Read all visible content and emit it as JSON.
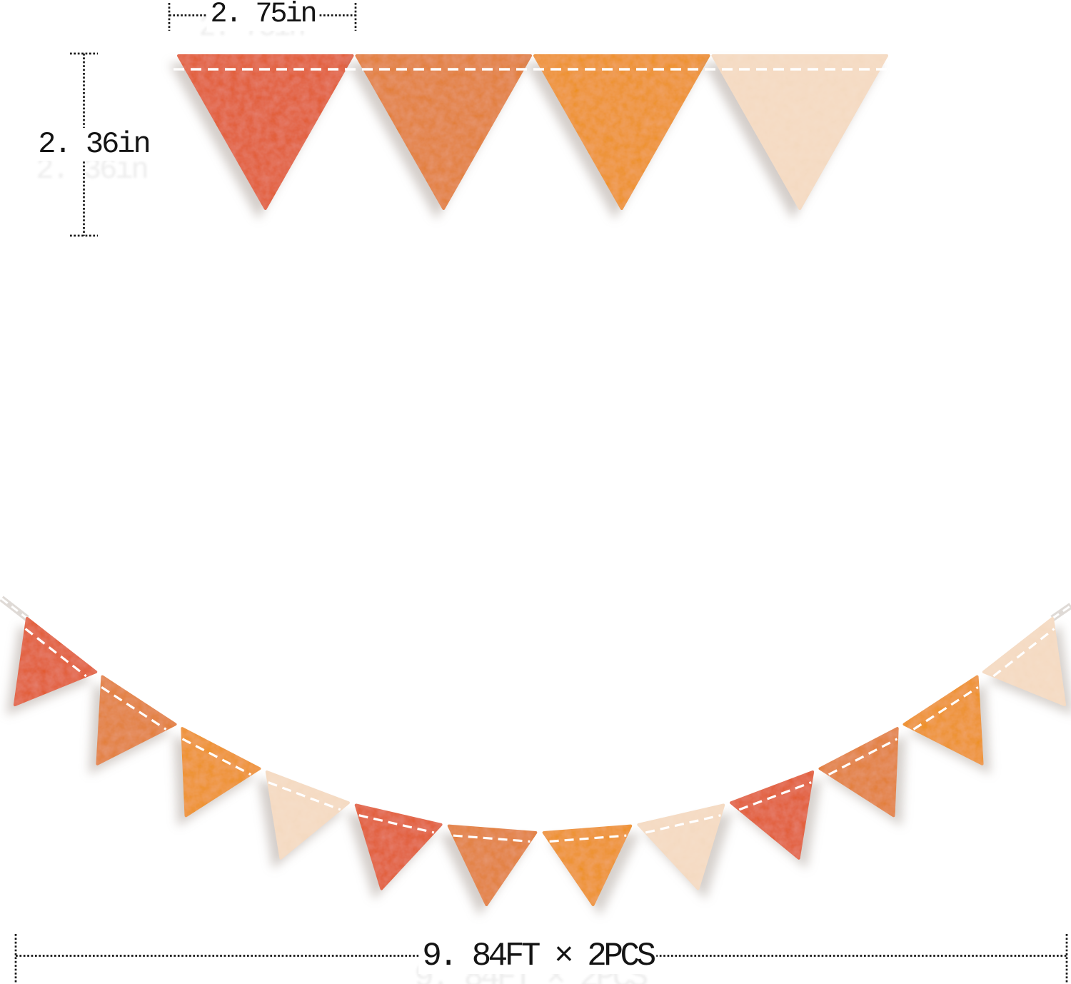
{
  "page": {
    "background": "#ffffff"
  },
  "palette": {
    "red_orange": "#E1562B",
    "orange": "#E27B31",
    "golden_orange": "#EE8E15",
    "peach": "#F4D9C0"
  },
  "stitch_color": "#FFFFFF",
  "dimension_color": "#161616",
  "top_row": {
    "flags": [
      "red_orange",
      "orange",
      "golden_orange",
      "peach"
    ]
  },
  "garland": {
    "flags": [
      "red_orange",
      "orange",
      "golden_orange",
      "peach",
      "red_orange",
      "orange",
      "golden_orange",
      "peach",
      "red_orange",
      "orange",
      "golden_orange",
      "peach"
    ]
  },
  "annotations": {
    "width_label": "2. 75in",
    "height_label": "2. 36in",
    "length_label": "9. 84FT × 2PCS"
  }
}
